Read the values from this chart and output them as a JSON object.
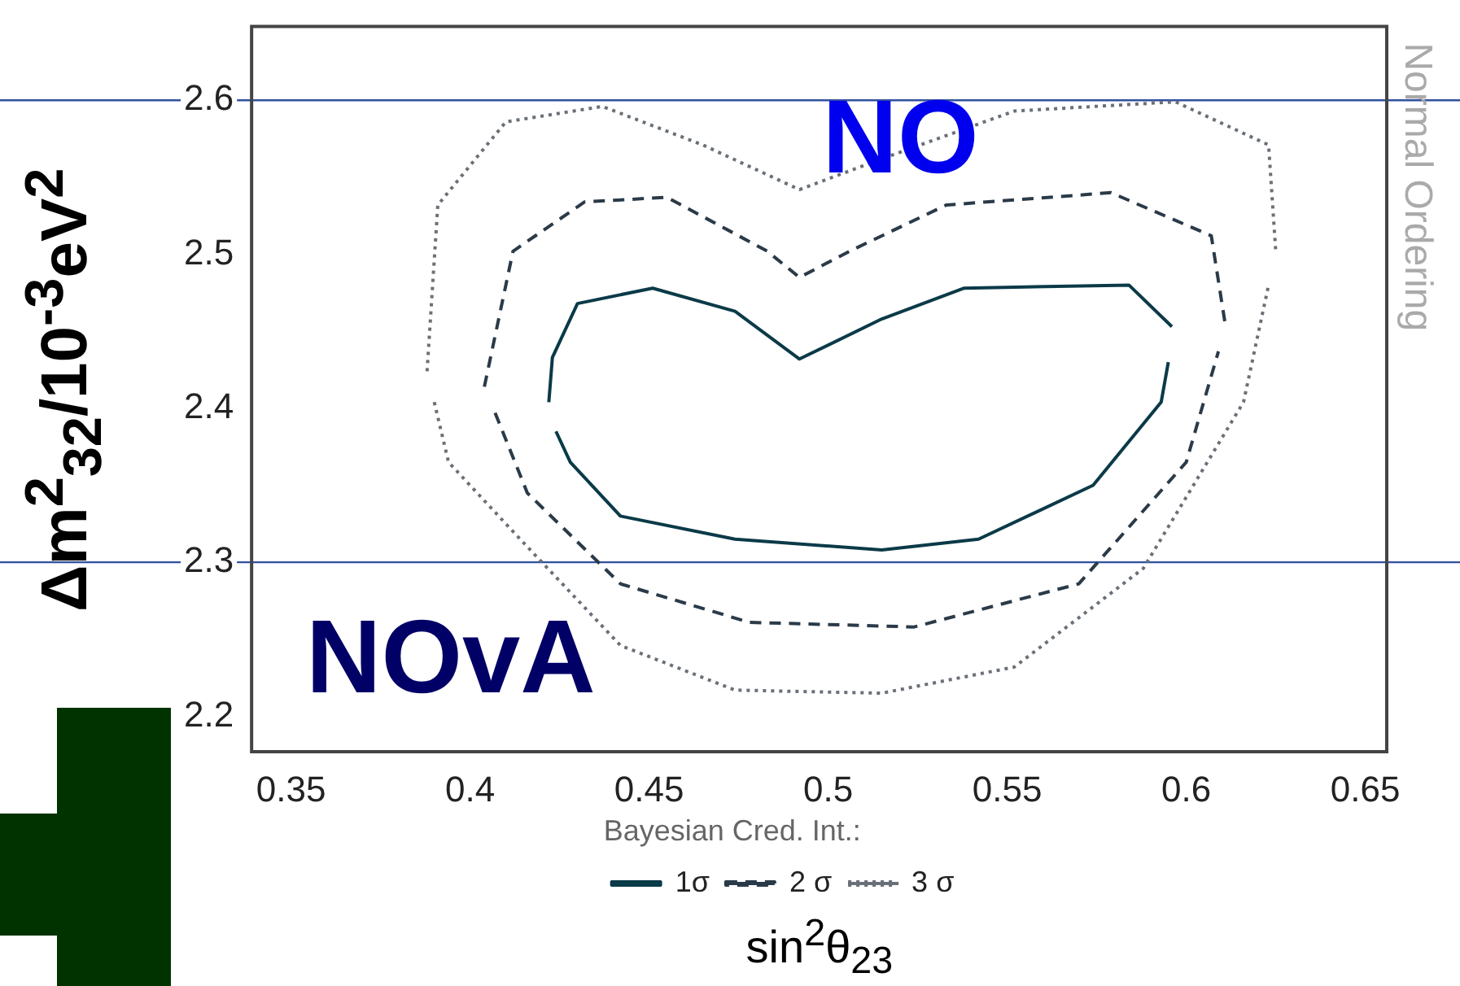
{
  "chart_data": {
    "type": "line",
    "xlabel": "sin$^{2}$θ$_{23}$",
    "ylabel": "Δm$^{2}$$_{32}$/10$^{-3}$eV$^{2}$",
    "legend_title": "Bayesian Cred. Int.:",
    "xlim": [
      0.339,
      0.656
    ],
    "xticks": [
      0.35,
      0.4,
      0.45,
      0.5,
      0.55,
      0.6,
      0.65
    ],
    "ylim": [
      2.177,
      2.648
    ],
    "yticks": [
      2.2,
      2.3,
      2.4,
      2.5,
      2.6
    ],
    "series": [
      {
        "name": "1σ",
        "color": "#0b3a48",
        "line_style": "solid",
        "x": [
          0.422,
          0.423,
          0.43,
          0.451,
          0.474,
          0.492,
          0.515,
          0.538,
          0.584,
          0.596
        ],
        "values": [
          2.404,
          2.433,
          2.468,
          2.478,
          2.463,
          2.432,
          2.458,
          2.478,
          2.48,
          2.453
        ]
      },
      {
        "color": "#0b3a48",
        "line_style": "solid",
        "x": [
          0.424,
          0.428,
          0.442,
          0.474,
          0.515,
          0.542,
          0.574,
          0.593,
          0.595
        ],
        "values": [
          2.385,
          2.365,
          2.33,
          2.315,
          2.308,
          2.315,
          2.35,
          2.404,
          2.43
        ]
      },
      {
        "name": "2 σ",
        "color": "#2a3a48",
        "line_style": "dashed",
        "x": [
          0.404,
          0.412,
          0.432,
          0.455,
          0.483,
          0.492,
          0.506,
          0.533,
          0.579,
          0.607,
          0.611
        ],
        "values": [
          2.414,
          2.502,
          2.534,
          2.537,
          2.502,
          2.485,
          2.502,
          2.532,
          2.54,
          2.512,
          2.453
        ]
      },
      {
        "color": "#2a3a48",
        "line_style": "dashed",
        "x": [
          0.407,
          0.416,
          0.442,
          0.478,
          0.524,
          0.57,
          0.6,
          0.609
        ],
        "values": [
          2.397,
          2.345,
          2.286,
          2.261,
          2.258,
          2.286,
          2.365,
          2.437
        ]
      },
      {
        "name": "3 σ",
        "color": "#6a7078",
        "line_style": "dotted",
        "x": [
          0.388,
          0.391,
          0.41,
          0.437,
          0.465,
          0.492,
          0.515,
          0.552,
          0.597,
          0.623,
          0.625
        ],
        "values": [
          2.424,
          2.532,
          2.586,
          2.596,
          2.571,
          2.542,
          2.562,
          2.593,
          2.599,
          2.571,
          2.502
        ]
      },
      {
        "color": "#6a7078",
        "line_style": "dotted",
        "x": [
          0.39,
          0.394,
          0.414,
          0.442,
          0.474,
          0.515,
          0.552,
          0.588,
          0.616,
          0.623
        ],
        "values": [
          2.404,
          2.365,
          2.315,
          2.246,
          2.217,
          2.215,
          2.232,
          2.296,
          2.404,
          2.48
        ]
      }
    ],
    "ref_lines": [
      {
        "axis": "y",
        "value": 2.6,
        "color": "#3050a0"
      },
      {
        "axis": "y",
        "value": 2.3,
        "color": "#3050a0"
      }
    ],
    "annotations": [
      "NO",
      "NOvA",
      "Normal Ordering"
    ],
    "legend": "bottom",
    "grid": false,
    "marker": "none"
  }
}
